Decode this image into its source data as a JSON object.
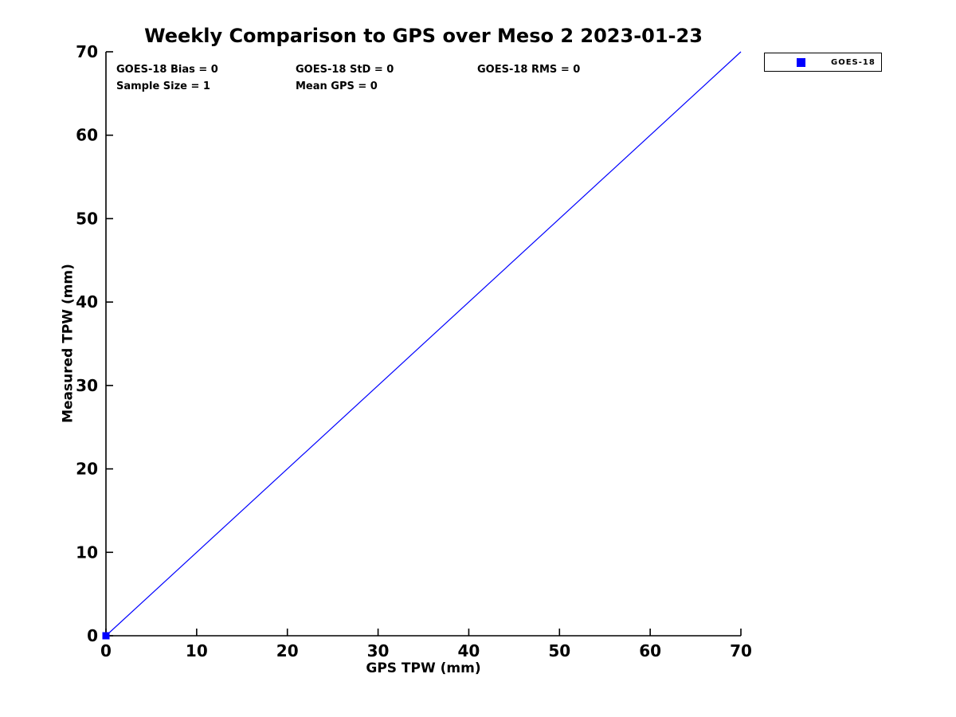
{
  "chart_data": {
    "type": "scatter",
    "title": "Weekly Comparison to GPS over Meso 2 2023-01-23",
    "xlabel": "GPS TPW (mm)",
    "ylabel": "Measured TPW (mm)",
    "xlim": [
      0,
      70
    ],
    "ylim": [
      0,
      70
    ],
    "xticks": [
      0,
      10,
      20,
      30,
      40,
      50,
      60,
      70
    ],
    "yticks": [
      0,
      10,
      20,
      30,
      40,
      50,
      60,
      70
    ],
    "grid": false,
    "box": false,
    "axis_color": "#000000",
    "background_color": "#ffffff",
    "legend": {
      "position": "outside-top-right",
      "entries": [
        {
          "label": "GOES-18",
          "marker": "square",
          "color": "#0000ff"
        }
      ]
    },
    "series": [
      {
        "name": "GOES-18 line",
        "type": "line",
        "color": "#0000ff",
        "line_width": 1.2,
        "points": [
          [
            0,
            0
          ],
          [
            70,
            70
          ]
        ]
      },
      {
        "name": "GOES-18",
        "type": "scatter",
        "marker": "square",
        "marker_size": 9,
        "color": "#0000ff",
        "points": [
          [
            0,
            0
          ]
        ]
      }
    ],
    "annotations": {
      "bias": "GOES-18 Bias = 0",
      "std": "GOES-18 StD = 0",
      "rms": "GOES-18 RMS = 0",
      "sample_size": "Sample Size = 1",
      "mean_gps": "Mean GPS = 0"
    }
  }
}
